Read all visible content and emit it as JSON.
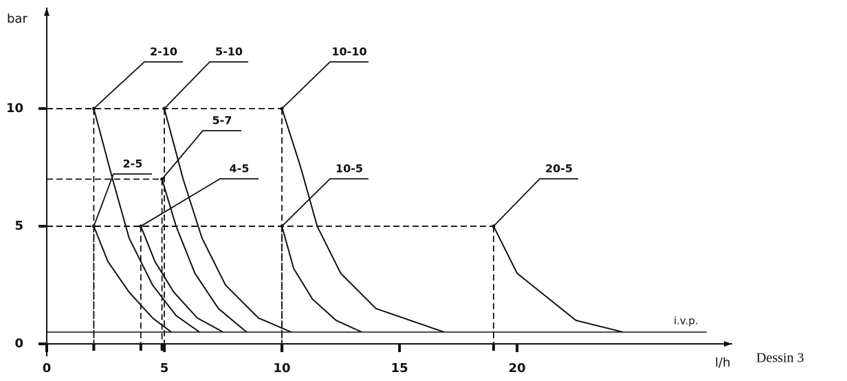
{
  "chart_data": {
    "type": "line",
    "y_label": "bar",
    "x_label": "l/h",
    "caption": "Dessin 3",
    "xlim": [
      0,
      29
    ],
    "ylim": [
      0,
      14
    ],
    "xticks": [
      0,
      5,
      10,
      15,
      20
    ],
    "yticks": [
      0,
      5,
      10
    ],
    "reference": {
      "label": "i.v.p.",
      "value": 0.5
    },
    "color": "#111111",
    "series": [
      {
        "name": "2-10",
        "x": [
          2,
          2.8,
          3.5,
          4.5,
          5.5,
          6.5
        ],
        "values": [
          10,
          7,
          4.5,
          2.5,
          1.2,
          0.5
        ]
      },
      {
        "name": "5-10",
        "x": [
          5,
          5.8,
          6.6,
          7.6,
          9,
          10.4
        ],
        "values": [
          10,
          7,
          4.5,
          2.5,
          1.1,
          0.5
        ]
      },
      {
        "name": "10-10",
        "x": [
          10,
          10.8,
          11.5,
          12.5,
          14,
          16.9
        ],
        "values": [
          10,
          7.5,
          5,
          3,
          1.5,
          0.5
        ]
      },
      {
        "name": "5-7",
        "x": [
          4.9,
          5.5,
          6.3,
          7.3,
          8.5
        ],
        "values": [
          7,
          5,
          3,
          1.5,
          0.5
        ]
      },
      {
        "name": "2-5",
        "x": [
          2,
          2.6,
          3.5,
          4.5,
          5.3
        ],
        "values": [
          5,
          3.5,
          2.2,
          1.1,
          0.5
        ]
      },
      {
        "name": "4-5",
        "x": [
          4,
          4.6,
          5.4,
          6.4,
          7.5
        ],
        "values": [
          5,
          3.5,
          2.2,
          1.1,
          0.5
        ]
      },
      {
        "name": "10-5",
        "x": [
          10,
          10.5,
          11.3,
          12.3,
          13.4
        ],
        "values": [
          5,
          3.2,
          1.9,
          1,
          0.5
        ]
      },
      {
        "name": "20-5",
        "x": [
          19,
          20,
          21,
          22.5,
          24.5
        ],
        "values": [
          5,
          3,
          2.2,
          1,
          0.5
        ]
      }
    ]
  }
}
